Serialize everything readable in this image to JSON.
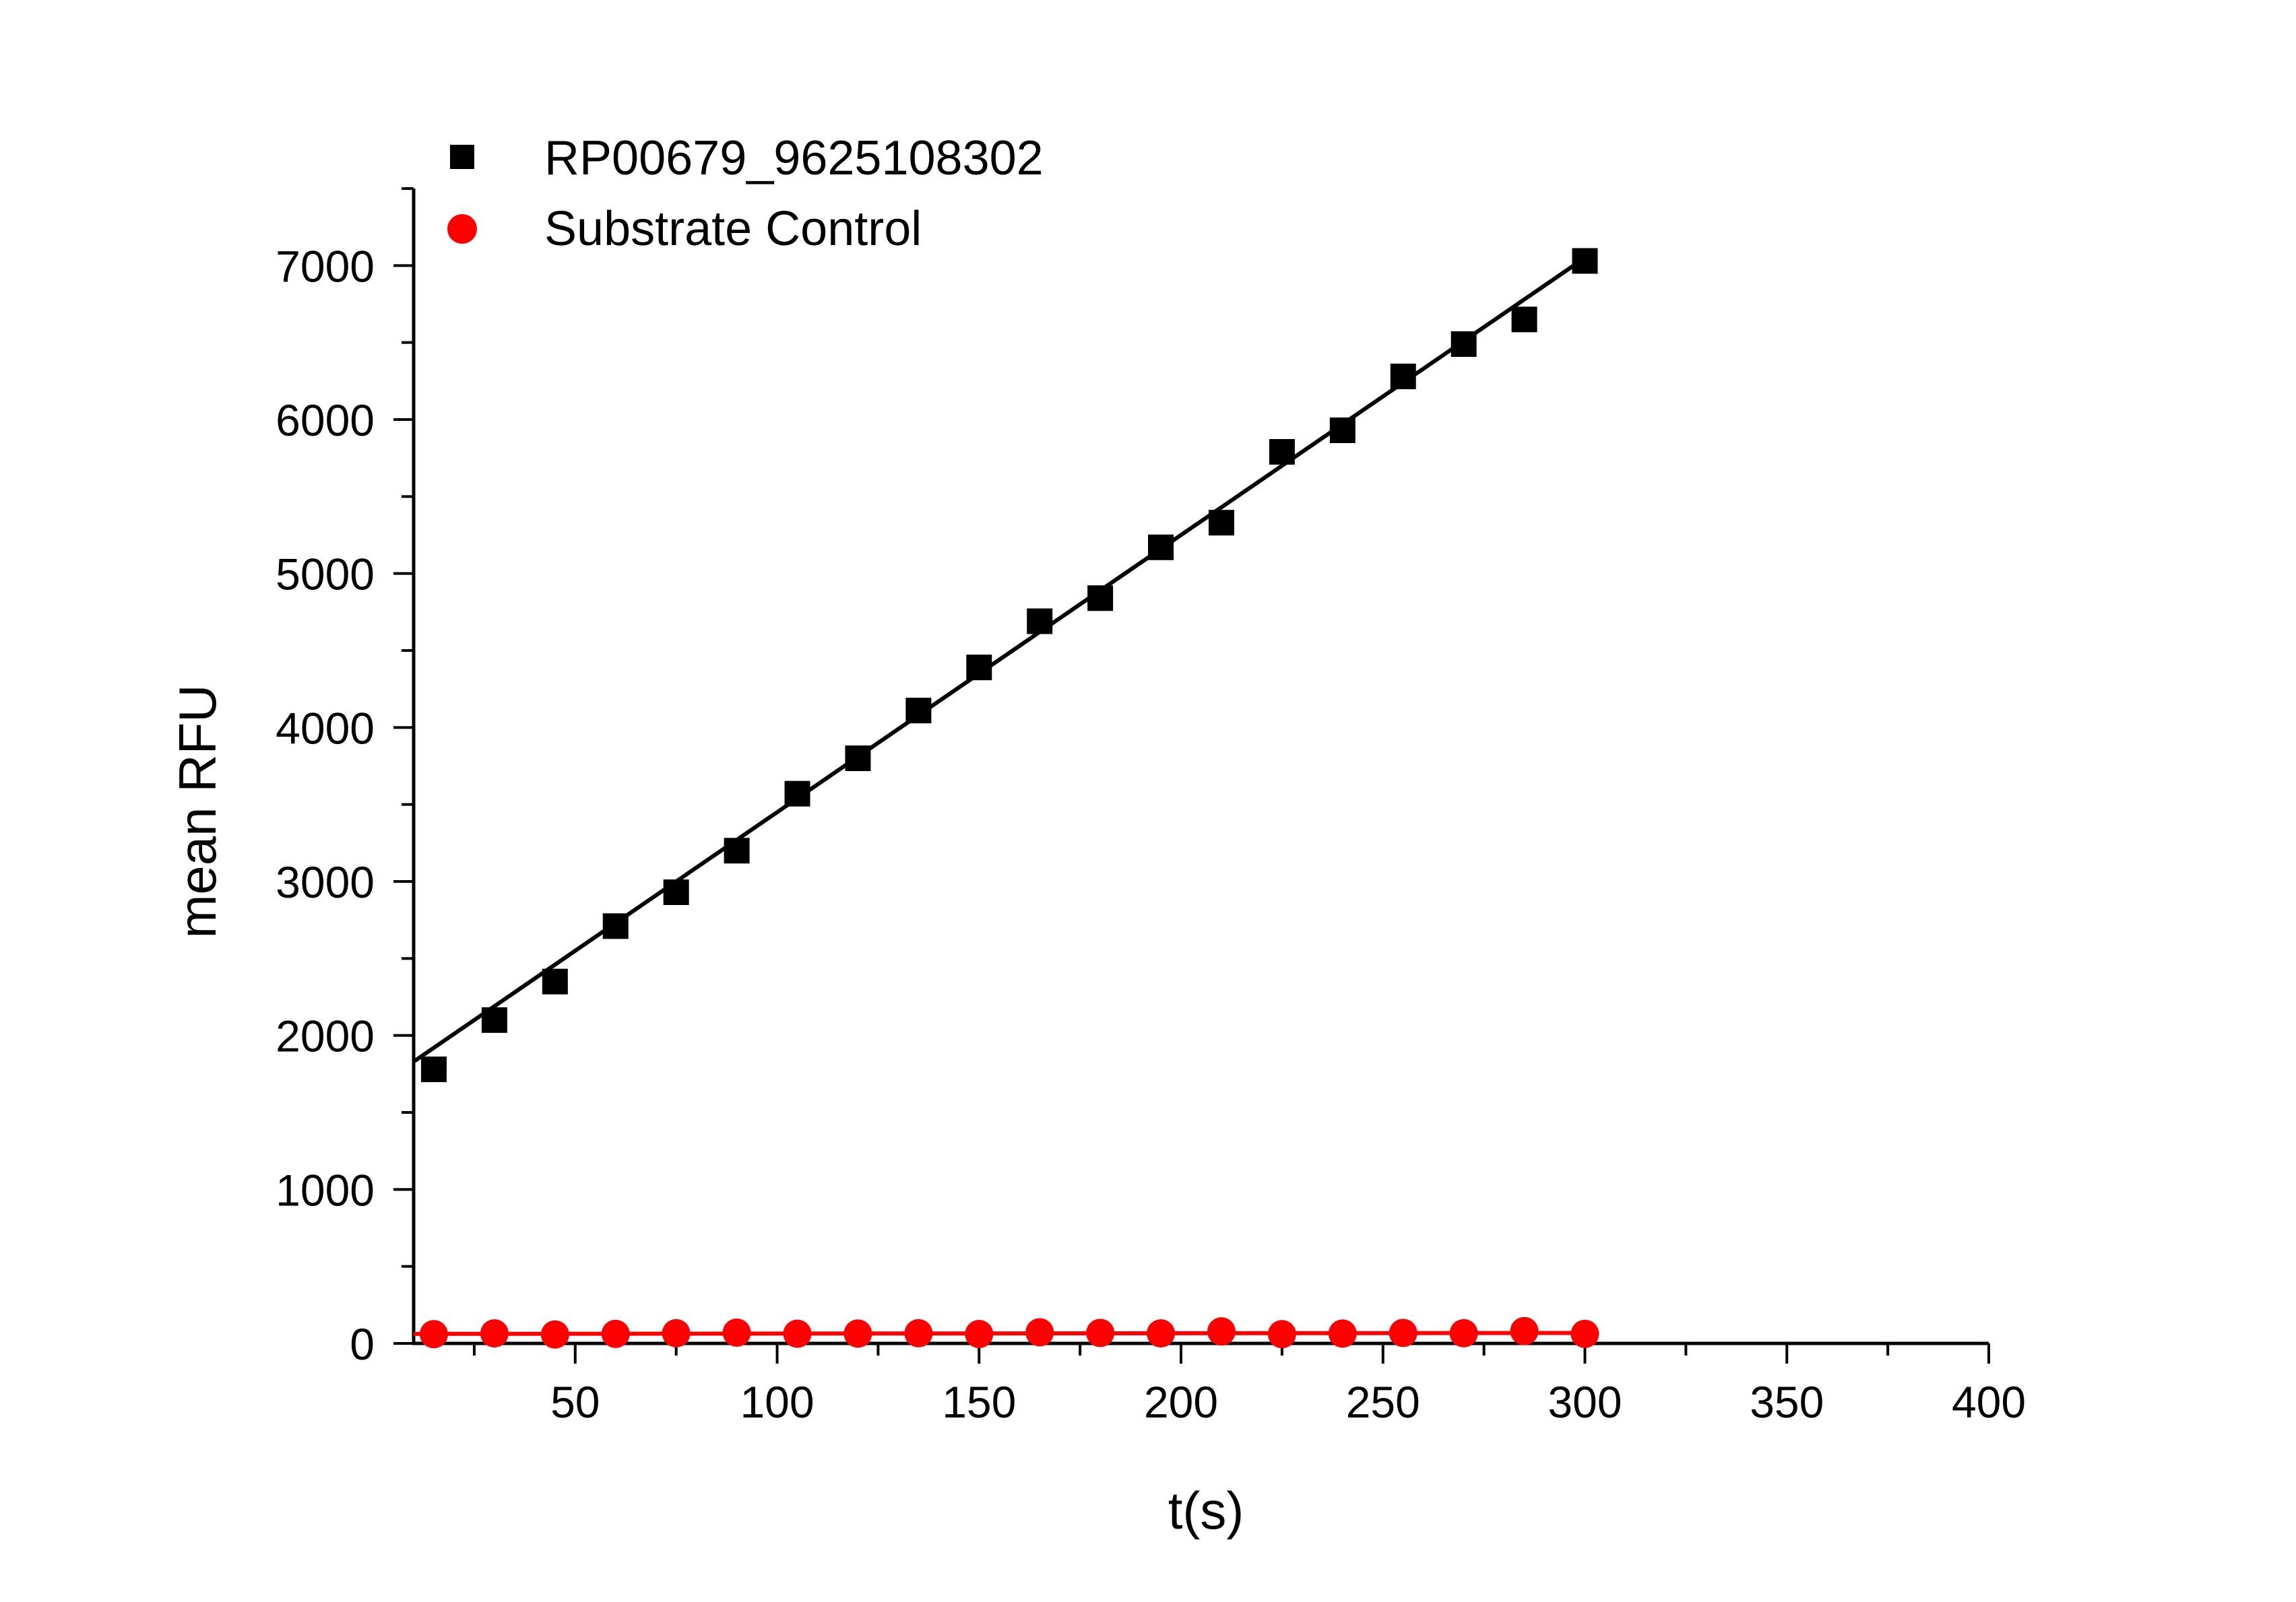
{
  "chart_data": {
    "type": "scatter",
    "title": "",
    "xlabel": "t(s)",
    "ylabel": "mean RFU",
    "xlim": [
      10,
      400
    ],
    "ylim": [
      0,
      7500
    ],
    "xticks": [
      50,
      100,
      150,
      200,
      250,
      300,
      350,
      400
    ],
    "xtick_labels": [
      "50",
      "100",
      "150",
      "200",
      "250",
      "300",
      "350",
      "400"
    ],
    "yticks": [
      0,
      1000,
      2000,
      3000,
      4000,
      5000,
      6000,
      7000
    ],
    "ytick_labels": [
      "0",
      "1000",
      "2000",
      "3000",
      "4000",
      "5000",
      "6000",
      "7000"
    ],
    "grid": false,
    "legend_position": "top-left",
    "series": [
      {
        "name": "RP00679_9625108302",
        "marker": "square",
        "color": "#000000",
        "fit_line": true,
        "x": [
          15,
          30,
          45,
          60,
          75,
          90,
          105,
          120,
          135,
          150,
          165,
          180,
          195,
          210,
          225,
          240,
          255,
          270,
          285,
          300
        ],
        "y": [
          1780,
          2100,
          2350,
          2710,
          2930,
          3200,
          3570,
          3800,
          4110,
          4390,
          4690,
          4840,
          5170,
          5330,
          5790,
          5930,
          6280,
          6490,
          6650,
          7030
        ],
        "fit": [
          [
            10,
            1830
          ],
          [
            300,
            7050
          ]
        ]
      },
      {
        "name": "Substrate Control",
        "marker": "circle",
        "color": "#ff0000",
        "fit_line": true,
        "x": [
          15,
          30,
          45,
          60,
          75,
          90,
          105,
          120,
          135,
          150,
          165,
          180,
          195,
          210,
          225,
          240,
          255,
          270,
          285,
          300
        ],
        "y": [
          60,
          65,
          58,
          62,
          66,
          70,
          63,
          64,
          66,
          61,
          72,
          68,
          65,
          78,
          60,
          64,
          68,
          66,
          80,
          62
        ],
        "fit": [
          [
            10,
            62
          ],
          [
            300,
            68
          ]
        ]
      }
    ]
  }
}
